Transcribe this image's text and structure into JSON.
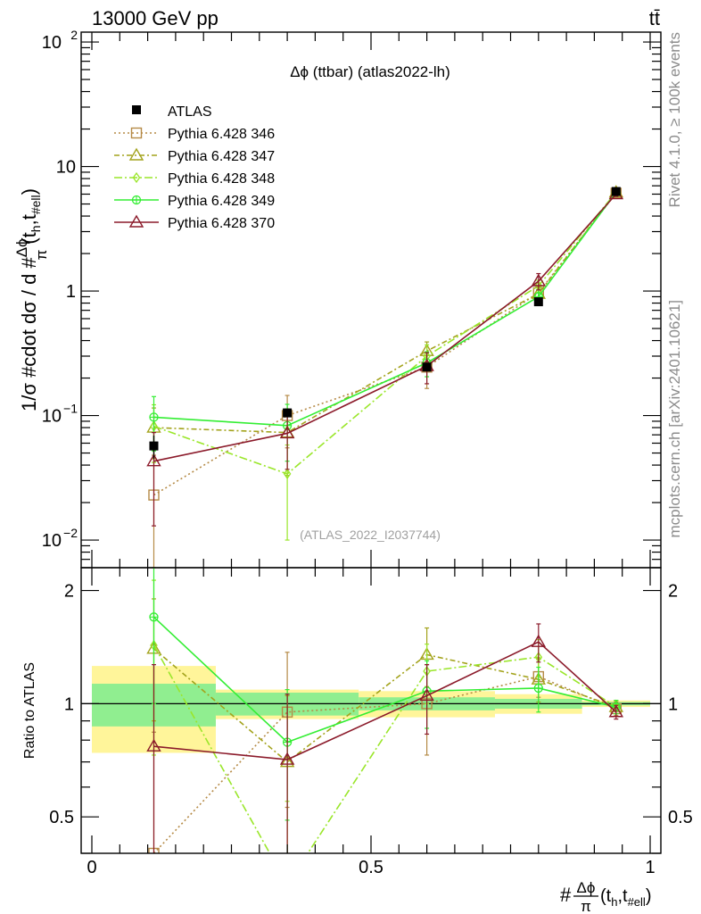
{
  "header": {
    "energy_label": "13000 GeV pp",
    "process_label": "tt̄"
  },
  "side_labels": {
    "rivet": "Rivet 4.1.0, ≥ 100k events",
    "mcplots": "mcplots.cern.ch [arXiv:2401.10621]"
  },
  "colors": {
    "data": "#000000",
    "s346": "#b58a46",
    "s347": "#a3a31c",
    "s348": "#9ae62a",
    "s349": "#33ee33",
    "s370": "#8b1a2a",
    "band_green": "#90ee90",
    "band_yellow": "#fff59a"
  },
  "chart_data": {
    "type": "line",
    "title": "Δϕ (ttbar) (atlas2022-lh)",
    "watermark": "(ATLAS_2022_I2037744)",
    "ylabel": "1/σ #cdot dσ / d #Δϕ/π(t_h,t_#ell)",
    "ylabel_parts": {
      "prefix": "1/σ #cdot dσ / d #",
      "frac_num": "Δϕ",
      "frac_den": "π",
      "args": "(t",
      "sub1": "h",
      "mid": ",t",
      "sub2": "#ell",
      "close": ")"
    },
    "xlabel_parts": {
      "prefix": "#",
      "frac_num": "Δϕ",
      "frac_den": "π",
      "args": "(t",
      "sub1": "h",
      "mid": ",t",
      "sub2": "#ell",
      "close": ")"
    },
    "ratio_ylabel": "Ratio to ATLAS",
    "xlim": [
      0,
      1
    ],
    "ylim": [
      0.006,
      120
    ],
    "ratio_ylim": [
      0.4,
      2.3
    ],
    "x_ticks": [
      {
        "v": 0,
        "label": "0"
      },
      {
        "v": 0.5,
        "label": "0.5"
      },
      {
        "v": 1,
        "label": "1"
      }
    ],
    "y_ticks": [
      {
        "v": 0.01,
        "base": "10",
        "exp": "−2"
      },
      {
        "v": 0.1,
        "base": "10",
        "exp": "−1"
      },
      {
        "v": 1,
        "base": "1",
        "exp": ""
      },
      {
        "v": 10,
        "base": "10",
        "exp": ""
      },
      {
        "v": 100,
        "base": "10",
        "exp": "2"
      }
    ],
    "ratio_y_ticks": [
      {
        "v": 0.5,
        "label": "0.5"
      },
      {
        "v": 1,
        "label": "1"
      },
      {
        "v": 2,
        "label": "2"
      }
    ],
    "bins": [
      {
        "lo": 0.0,
        "hi": 0.222
      },
      {
        "lo": 0.222,
        "hi": 0.478
      },
      {
        "lo": 0.478,
        "hi": 0.722
      },
      {
        "lo": 0.722,
        "hi": 0.878
      },
      {
        "lo": 0.878,
        "hi": 1.0
      }
    ],
    "x": [
      0.111,
      0.35,
      0.6,
      0.8,
      0.939
    ],
    "data": {
      "name": "ATLAS",
      "y": [
        0.057,
        0.105,
        0.245,
        0.82,
        6.3
      ],
      "yerr": [
        0.012,
        0.008,
        0.015,
        0.03,
        0.1
      ],
      "stat_ratio_err": [
        0.13,
        0.07,
        0.04,
        0.03,
        0.01
      ],
      "tot_ratio_err": [
        0.26,
        0.09,
        0.08,
        0.06,
        0.02
      ]
    },
    "series": [
      {
        "name": "Pythia 6.428 346",
        "color_key": "s346",
        "marker": "square",
        "dash": "2,3",
        "y": [
          0.023,
          0.1,
          0.245,
          0.97,
          6.1
        ],
        "yerr": [
          0.025,
          0.045,
          0.08,
          0.12,
          0.25
        ],
        "ratio": [
          0.4,
          0.95,
          1.0,
          1.18,
          0.97
        ],
        "ratio_err": [
          0.44,
          0.42,
          0.27,
          0.14,
          0.04
        ]
      },
      {
        "name": "Pythia 6.428 347",
        "color_key": "s347",
        "marker": "triangle-up",
        "dash": "6,3,2,3",
        "y": [
          0.08,
          0.073,
          0.33,
          0.95,
          6.2
        ],
        "yerr": [
          0.035,
          0.04,
          0.06,
          0.12,
          0.25
        ],
        "ratio": [
          1.4,
          0.7,
          1.35,
          1.16,
          0.98
        ],
        "ratio_err": [
          0.5,
          0.35,
          0.24,
          0.15,
          0.04
        ]
      },
      {
        "name": "Pythia 6.428 348",
        "color_key": "s348",
        "marker": "diamond",
        "dash": "9,3,2,3",
        "y": [
          0.082,
          0.034,
          0.3,
          1.1,
          6.2
        ],
        "yerr": [
          0.04,
          0.024,
          0.07,
          0.12,
          0.25
        ],
        "ratio": [
          1.43,
          0.33,
          1.22,
          1.33,
          0.98
        ],
        "ratio_err": [
          0.7,
          0.22,
          0.22,
          0.15,
          0.04
        ]
      },
      {
        "name": "Pythia 6.428 349",
        "color_key": "s349",
        "marker": "circle-plus",
        "dash": "",
        "y": [
          0.097,
          0.083,
          0.265,
          0.9,
          6.2
        ],
        "yerr": [
          0.045,
          0.04,
          0.06,
          0.12,
          0.25
        ],
        "ratio": [
          1.7,
          0.79,
          1.08,
          1.1,
          0.98
        ],
        "ratio_err": [
          0.7,
          0.3,
          0.22,
          0.15,
          0.04
        ]
      },
      {
        "name": "Pythia 6.428 370",
        "color_key": "s370",
        "marker": "triangle-up",
        "dash": "",
        "y": [
          0.043,
          0.072,
          0.25,
          1.2,
          6.0
        ],
        "yerr": [
          0.03,
          0.035,
          0.07,
          0.18,
          0.25
        ],
        "ratio": [
          0.77,
          0.71,
          1.05,
          1.46,
          0.95
        ],
        "ratio_err": [
          0.5,
          0.35,
          0.22,
          0.17,
          0.04
        ]
      }
    ]
  }
}
